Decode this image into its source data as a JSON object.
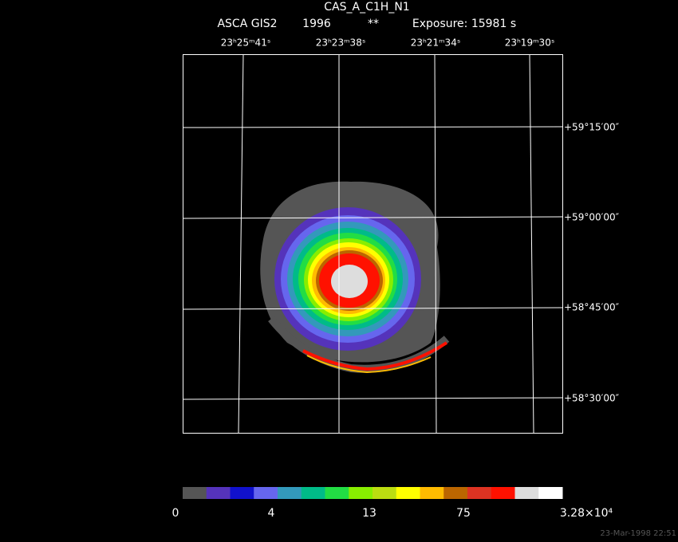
{
  "header": {
    "title": "CAS_A_C1H_N1",
    "instrument": "ASCA GIS2",
    "year": "1996",
    "flag": "**",
    "exposure": "Exposure: 15981 s"
  },
  "image": {
    "ra_labels": [
      "23ʰ25ᵐ41ˢ",
      "23ʰ23ᵐ38ˢ",
      "23ʰ21ᵐ34ˢ",
      "23ʰ19ᵐ30ˢ"
    ],
    "dec_labels": [
      "+59°15′00″",
      "+59°00′00″",
      "+58°45′00″",
      "+58°30′00″"
    ]
  },
  "colorbar": {
    "colors": [
      "#555555",
      "#5533bb",
      "#1111cc",
      "#6666ee",
      "#3399bb",
      "#00bb88",
      "#22dd44",
      "#88ee00",
      "#bbdd11",
      "#ffff00",
      "#ffbb00",
      "#bb6600",
      "#dd3322",
      "#ff1100",
      "#dddddd",
      "#ffffff"
    ],
    "labels": [
      "0",
      "4",
      "13",
      "75",
      "3.28×10⁴"
    ]
  },
  "footer": {
    "timestamp": "23-Mar-1998 22:51"
  }
}
